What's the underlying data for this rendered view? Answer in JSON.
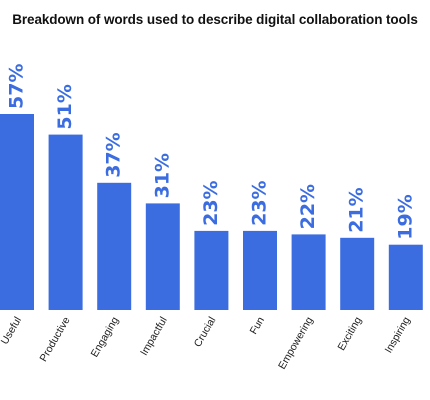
{
  "chart_data": {
    "type": "bar",
    "title": "Breakdown of words used to describe digital collaboration tools",
    "categories": [
      "Useful",
      "Productive",
      "Engaging",
      "Impactful",
      "Crucial",
      "Fun",
      "Empowering",
      "Exciting",
      "Inspiring"
    ],
    "values": [
      57,
      51,
      37,
      31,
      23,
      23,
      22,
      21,
      19
    ],
    "value_labels": [
      "57%",
      "51%",
      "37%",
      "31%",
      "23%",
      "23%",
      "22%",
      "21%",
      "19%"
    ],
    "xlabel": "",
    "ylabel": "",
    "ylim": [
      0,
      57
    ],
    "grid": false,
    "legend": "none",
    "colors": {
      "bar": "#3b6de0",
      "label": "#3b6de0"
    }
  }
}
